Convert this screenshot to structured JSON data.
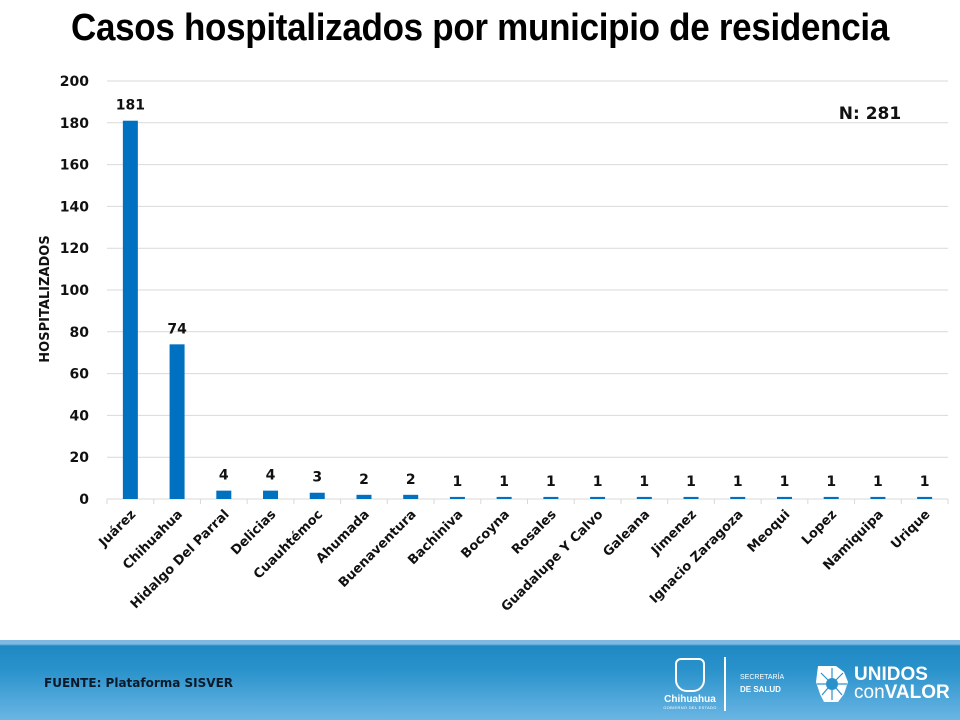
{
  "title": "Casos hospitalizados por municipio de residencia",
  "annotation": "N: 281",
  "footer": {
    "source": "FUENTE: Plataforma SISVER",
    "logos": {
      "chihuahua": "Chihuahua",
      "chihuahua_sub": "GOBIERNO DEL ESTADO",
      "secretaria_line1": "SECRETARÍA",
      "secretaria_line2": "DE SALUD",
      "unidos_line1": "UNIDOS",
      "unidos_line2_a": "con",
      "unidos_line2_b": "VALOR"
    }
  },
  "colors": {
    "bar": "#0070c0",
    "grid": "#d9d9d9",
    "footer": "#2a92cb"
  },
  "chart_data": {
    "type": "bar",
    "title": "Casos hospitalizados por municipio de residencia",
    "xlabel": "",
    "ylabel": "HOSPITALIZADOS",
    "ylim": [
      0,
      200
    ],
    "yticks": [
      0,
      20,
      40,
      60,
      80,
      100,
      120,
      140,
      160,
      180,
      200
    ],
    "grid": true,
    "legend": "none",
    "categories": [
      "Juárez",
      "Chihuahua",
      "Hidalgo Del Parral",
      "Delicias",
      "Cuauhtémoc",
      "Ahumada",
      "Buenaventura",
      "Bachiniva",
      "Bocoyna",
      "Rosales",
      "Guadalupe Y Calvo",
      "Galeana",
      "Jimenez",
      "Ignacio Zaragoza",
      "Meoqui",
      "Lopez",
      "Namiquipa",
      "Urique"
    ],
    "values": [
      181,
      74,
      4,
      4,
      3,
      2,
      2,
      1,
      1,
      1,
      1,
      1,
      1,
      1,
      1,
      1,
      1,
      1
    ],
    "annotations": [
      "N: 281"
    ]
  }
}
